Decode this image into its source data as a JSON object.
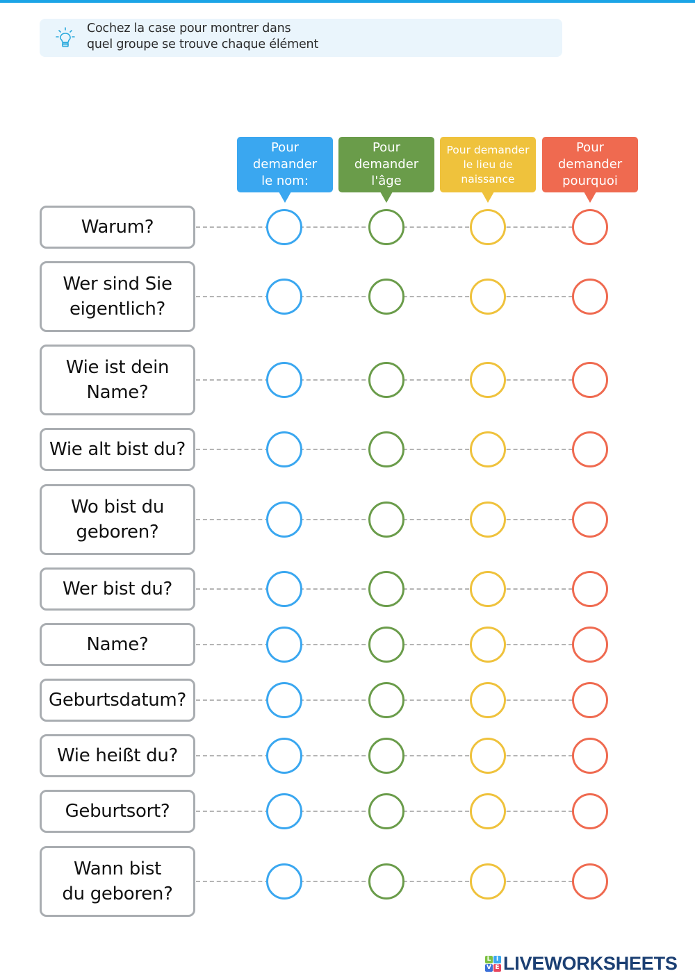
{
  "header": {
    "accent_color": "#1ba4e6"
  },
  "hint": {
    "icon": "lightbulb-icon",
    "line1": "Cochez la case pour montrer dans",
    "line2": "quel groupe se trouve chaque élément"
  },
  "categories": [
    {
      "lines": [
        "Pour",
        "demander",
        "le nom:"
      ],
      "color": "#3aa7f0",
      "icon": "pointer-triangle"
    },
    {
      "lines": [
        "Pour",
        "demander",
        "l'âge"
      ],
      "color": "#6a9c4a",
      "icon": "pointer-triangle"
    },
    {
      "lines": [
        "Pour demander",
        "le lieu de",
        "naissance"
      ],
      "color": "#efc23c",
      "icon": "pointer-triangle"
    },
    {
      "lines": [
        "Pour",
        "demander",
        "pourquoi"
      ],
      "color": "#ef6a50",
      "icon": "pointer-triangle"
    }
  ],
  "items": [
    {
      "lines": [
        "Warum?"
      ]
    },
    {
      "lines": [
        "Wer sind Sie",
        "eigentlich?"
      ]
    },
    {
      "lines": [
        "Wie ist dein",
        "Name?"
      ]
    },
    {
      "lines": [
        "Wie alt bist du?"
      ]
    },
    {
      "lines": [
        "Wo bist du",
        "geboren?"
      ]
    },
    {
      "lines": [
        "Wer bist du?"
      ]
    },
    {
      "lines": [
        "Name?"
      ]
    },
    {
      "lines": [
        "Geburtsdatum?"
      ]
    },
    {
      "lines": [
        "Wie heißt du?"
      ]
    },
    {
      "lines": [
        "Geburtsort?"
      ]
    },
    {
      "lines": [
        "Wann bist",
        "du geboren?"
      ]
    }
  ],
  "footer": {
    "logo_letters": [
      "L",
      "I",
      "V",
      "E"
    ],
    "logo_letter_colors": [
      "#7cc142",
      "#3aa7f0",
      "#3a6fd8",
      "#e8465f"
    ],
    "logo_text": "LIVEWORKSHEETS"
  }
}
